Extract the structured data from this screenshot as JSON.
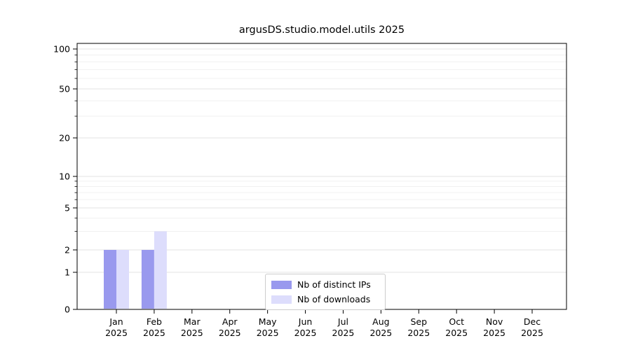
{
  "title": "argusDS.studio.model.utils 2025",
  "chart_data": {
    "type": "bar",
    "months": [
      "Jan",
      "Feb",
      "Mar",
      "Apr",
      "May",
      "Jun",
      "Jul",
      "Aug",
      "Sep",
      "Oct",
      "Nov",
      "Dec"
    ],
    "year_label": "2025",
    "series": [
      {
        "name": "Nb of distinct IPs",
        "color": "#9999ee",
        "values": [
          2,
          2,
          0,
          0,
          0,
          0,
          0,
          0,
          0,
          0,
          0,
          0
        ]
      },
      {
        "name": "Nb of downloads",
        "color": "#ddddfc",
        "values": [
          2,
          3,
          0,
          0,
          0,
          0,
          0,
          0,
          0,
          0,
          0,
          0
        ]
      }
    ],
    "yticks": [
      0,
      1,
      2,
      5,
      10,
      20,
      50,
      100
    ],
    "yscale": "log-like",
    "ylim": [
      0,
      110
    ],
    "grid": true,
    "legend_position": "lower center"
  }
}
